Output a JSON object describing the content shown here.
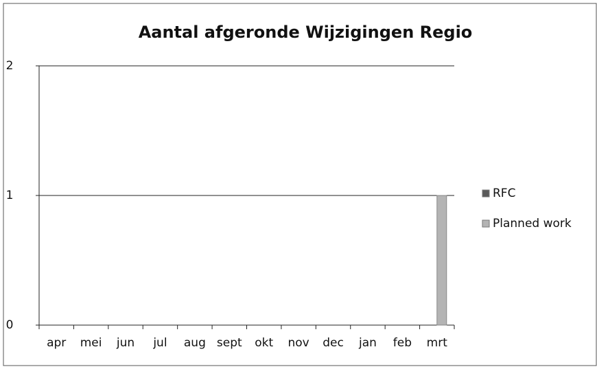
{
  "chart_data": {
    "type": "bar",
    "title": "Aantal afgeronde Wijzigingen Regio",
    "categories": [
      "apr",
      "mei",
      "jun",
      "jul",
      "aug",
      "sept",
      "okt",
      "nov",
      "dec",
      "jan",
      "feb",
      "mrt"
    ],
    "series": [
      {
        "name": "RFC",
        "color": "#5a5a5a",
        "values": [
          0,
          0,
          0,
          0,
          0,
          0,
          0,
          0,
          0,
          0,
          0,
          0
        ]
      },
      {
        "name": "Planned work",
        "color": "#b4b4b4",
        "values": [
          0,
          0,
          0,
          0,
          0,
          0,
          0,
          0,
          0,
          0,
          0,
          1
        ]
      }
    ],
    "ylim": [
      0,
      2
    ],
    "yticks": [
      0,
      1,
      2
    ],
    "grid": true,
    "legend": "right"
  }
}
